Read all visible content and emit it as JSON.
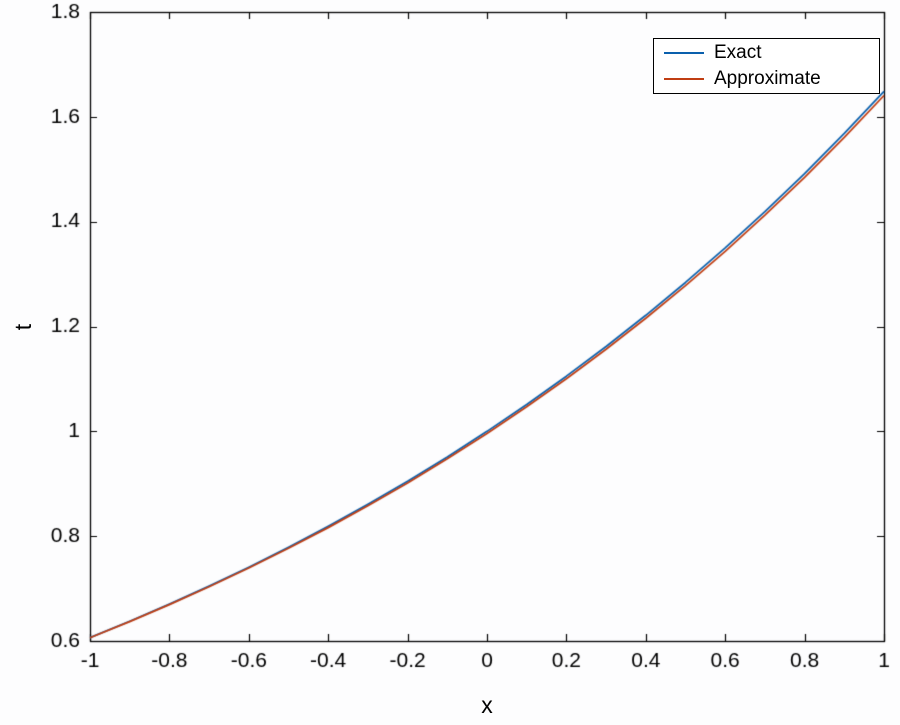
{
  "figure": {
    "background": "#fdfdfe"
  },
  "chart_data": {
    "type": "line",
    "title": "",
    "xlabel": "x",
    "ylabel": "t",
    "xlim": [
      -1,
      1
    ],
    "ylim": [
      0.6,
      1.8
    ],
    "grid": false,
    "axis_color": "#000000",
    "legend_position": "top-right",
    "xticks": [
      -1,
      -0.8,
      -0.6,
      -0.4,
      -0.2,
      0,
      0.2,
      0.4,
      0.6,
      0.8,
      1
    ],
    "xtick_labels": [
      "-1",
      "-0.8",
      "-0.6",
      "-0.4",
      "-0.2",
      "0",
      "0.2",
      "0.4",
      "0.6",
      "0.8",
      "1"
    ],
    "yticks": [
      0.6,
      0.8,
      1,
      1.2,
      1.4,
      1.6,
      1.8
    ],
    "ytick_labels": [
      "0.6",
      "0.8",
      "1",
      "1.2",
      "1.4",
      "1.6",
      "1.8"
    ],
    "x": [
      -1,
      -0.9,
      -0.8,
      -0.7,
      -0.6,
      -0.5,
      -0.4,
      -0.3,
      -0.2,
      -0.1,
      0,
      0.1,
      0.2,
      0.3,
      0.4,
      0.5,
      0.6,
      0.7,
      0.8,
      0.9,
      1
    ],
    "series": [
      {
        "name": "Exact",
        "color": "#0a60ad",
        "values": [
          0.6065,
          0.6376,
          0.6703,
          0.7047,
          0.7408,
          0.7788,
          0.8187,
          0.8607,
          0.9048,
          0.9512,
          1.0,
          1.0513,
          1.1052,
          1.1618,
          1.2214,
          1.284,
          1.3499,
          1.4191,
          1.4918,
          1.5683,
          1.6487
        ]
      },
      {
        "name": "Approximate",
        "color": "#c03e13",
        "values": [
          0.6063,
          0.637,
          0.6694,
          0.7035,
          0.7392,
          0.7768,
          0.8163,
          0.8579,
          0.9016,
          0.9476,
          0.996,
          1.0469,
          1.1004,
          1.1566,
          1.2158,
          1.278,
          1.3435,
          1.4123,
          1.4846,
          1.5607,
          1.6407
        ]
      }
    ]
  }
}
